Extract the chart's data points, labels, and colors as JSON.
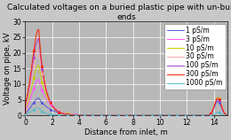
{
  "title": "Calculated voltages on a buried plastic pipe with un-buried\nends",
  "xlabel": "Distance from inlet, m",
  "ylabel": "Voltage on pipe, kV",
  "xlim": [
    0,
    15
  ],
  "ylim": [
    0,
    30
  ],
  "yticks": [
    0,
    5,
    10,
    15,
    20,
    25,
    30
  ],
  "xticks": [
    0,
    2,
    4,
    6,
    8,
    10,
    12,
    14
  ],
  "legend_labels": [
    "1 pS/m",
    "3 pS/m",
    "10 pS/m",
    "30 pS/m",
    "100 pS/m",
    "300 pS/m",
    "1000 pS/m"
  ],
  "series_colors": [
    "#5555dd",
    "#ff55ff",
    "#cccc00",
    "#ffaaaa",
    "#aa44cc",
    "#ff2200",
    "#55bbcc"
  ],
  "background_color": "#c8c8c8",
  "plot_bg": "#b8b8b8",
  "title_fontsize": 6.5,
  "axis_fontsize": 6,
  "legend_fontsize": 5.5,
  "tick_fontsize": 5.5,
  "series_params": [
    {
      "peak1": 5.5,
      "xp1": 1.0,
      "sl": 0.5,
      "sr": 0.35,
      "decay": 1.2,
      "peak2": 4.5,
      "xp2": 14.3,
      "sp2": 0.25
    },
    {
      "peak1": 11.5,
      "xp1": 1.0,
      "sl": 0.5,
      "sr": 0.35,
      "decay": 1.4,
      "peak2": 5.5,
      "xp2": 14.3,
      "sp2": 0.25
    },
    {
      "peak1": 16.0,
      "xp1": 1.0,
      "sl": 0.5,
      "sr": 0.35,
      "decay": 1.6,
      "peak2": 5.8,
      "xp2": 14.3,
      "sp2": 0.25
    },
    {
      "peak1": 21.0,
      "xp1": 1.0,
      "sl": 0.5,
      "sr": 0.35,
      "decay": 1.8,
      "peak2": 5.5,
      "xp2": 14.3,
      "sp2": 0.25
    },
    {
      "peak1": 24.5,
      "xp1": 1.0,
      "sl": 0.5,
      "sr": 0.35,
      "decay": 2.0,
      "peak2": 5.0,
      "xp2": 14.3,
      "sp2": 0.25
    },
    {
      "peak1": 27.5,
      "xp1": 1.0,
      "sl": 0.5,
      "sr": 0.35,
      "decay": 2.2,
      "peak2": 5.5,
      "xp2": 14.3,
      "sp2": 0.25
    },
    {
      "peak1": 2.5,
      "xp1": 1.0,
      "sl": 0.5,
      "sr": 0.35,
      "decay": 2.5,
      "peak2": 1.0,
      "xp2": 14.3,
      "sp2": 0.2
    }
  ]
}
